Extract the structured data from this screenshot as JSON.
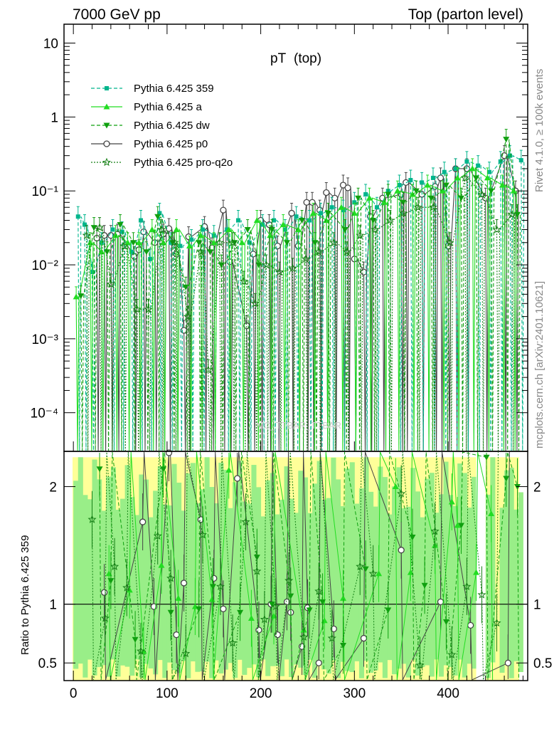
{
  "chart_data": {
    "type": "line",
    "header_left": "7000 GeV pp",
    "header_right": "Top (parton level)",
    "title": "pT",
    "title_sub": "(top)",
    "side_label_top": "Rivet 4.1.0, ≥ 100k events",
    "side_label_bottom": "mcplots.cern.ch [arXiv:2401.10621]",
    "watermark": "MC_TTBAR_TTBAR",
    "xlabel": "",
    "ylabel_main": "",
    "ylabel_ratio": "Ratio to Pythia 6.425 359",
    "xlim": [
      -10,
      485
    ],
    "ylim_main": [
      3e-05,
      18
    ],
    "ylim_ratio": [
      0.35,
      2.3
    ],
    "x_ticks": [
      0,
      100,
      200,
      300,
      400
    ],
    "x_tick_labels": [
      "0",
      "100",
      "200",
      "300",
      "400"
    ],
    "y_main_ticks": [
      0.0001,
      0.001,
      0.01,
      0.1,
      1,
      10
    ],
    "y_main_tick_labels": [
      "10⁻⁴",
      "10⁻³",
      "10⁻²",
      "10⁻¹",
      "1",
      "10"
    ],
    "y_ratio_ticks": [
      0.5,
      1,
      2
    ],
    "y_ratio_tick_labels": [
      "0.5",
      "1",
      "2"
    ],
    "legend": [
      {
        "name": "Pythia 6.425 359",
        "color": "#00b58c",
        "dash": "5,3",
        "marker": "square"
      },
      {
        "name": "Pythia 6.425 a",
        "color": "#22dd22",
        "dash": "",
        "marker": "triangle-up"
      },
      {
        "name": "Pythia 6.425 dw",
        "color": "#0fa00f",
        "dash": "5,3",
        "marker": "triangle-down"
      },
      {
        "name": "Pythia 6.425 p0",
        "color": "#444444",
        "dash": "",
        "marker": "circle-open"
      },
      {
        "name": "Pythia 6.425 pro-q2o",
        "color": "#157f15",
        "dash": "2,2",
        "marker": "star"
      }
    ],
    "series": [
      {
        "name": "Pythia 6.425 p0",
        "x": [
          25,
          33,
          40,
          47,
          65,
          70,
          75,
          87,
          96,
          102,
          110,
          118,
          123,
          140,
          148,
          160,
          167,
          185,
          192,
          200,
          209,
          218,
          233,
          240,
          249,
          255,
          263,
          270,
          279,
          288,
          293,
          300,
          310,
          317,
          330,
          350,
          355,
          372,
          386,
          392,
          400,
          408,
          420,
          440,
          460,
          472
        ],
        "values": [
          0.023,
          0.025,
          0.025,
          0.026,
          0.013,
          0.016,
          0.028,
          0.02,
          0.026,
          0.031,
          0.014,
          0.0013,
          0.024,
          0.033,
          0.017,
          0.055,
          0.011,
          0.0015,
          0.014,
          0.04,
          0.035,
          0.018,
          0.05,
          0.018,
          0.07,
          0.07,
          0.055,
          0.095,
          0.08,
          0.12,
          0.11,
          0.012,
          0.008,
          0.045,
          0.08,
          0.09,
          0.13,
          0.09,
          0.115,
          0.15,
          0.018,
          0.2,
          0.2,
          0.08,
          0.3,
          0.1
        ]
      },
      {
        "name": "Pythia 6.425 359",
        "x": [
          5,
          12,
          20,
          30,
          42,
          52,
          62,
          72,
          82,
          92,
          104,
          114,
          126,
          138,
          150,
          164,
          176,
          188,
          202,
          214,
          226,
          238,
          252,
          264,
          276,
          288,
          300,
          312,
          324,
          336,
          348,
          360,
          372,
          384,
          396,
          408,
          420,
          432,
          444,
          456,
          466,
          478
        ],
        "values": [
          0.045,
          0.035,
          0.008,
          0.02,
          0.03,
          0.028,
          0.015,
          0.04,
          0.012,
          0.05,
          0.02,
          0.018,
          0.022,
          0.03,
          0.025,
          0.03,
          0.04,
          0.02,
          0.035,
          0.04,
          0.03,
          0.045,
          0.04,
          0.05,
          0.06,
          0.055,
          0.07,
          0.09,
          0.06,
          0.1,
          0.12,
          0.14,
          0.13,
          0.15,
          0.18,
          0.2,
          0.25,
          0.22,
          0.18,
          0.25,
          0.3,
          0.26
        ]
      },
      {
        "name": "Pythia 6.425 a",
        "x": [
          3,
          18,
          30,
          45,
          58,
          70,
          84,
          96,
          110,
          124,
          136,
          150,
          166,
          180,
          196,
          210,
          224,
          240,
          256,
          270,
          286,
          300,
          316,
          332,
          346,
          362,
          378,
          394,
          410,
          426,
          442,
          458,
          470
        ],
        "values": [
          0.0037,
          0.02,
          0.015,
          0.025,
          0.02,
          0.02,
          0.03,
          0.02,
          0.03,
          0.018,
          0.025,
          0.02,
          0.03,
          0.02,
          0.04,
          0.025,
          0.035,
          0.03,
          0.05,
          0.04,
          0.06,
          0.05,
          0.08,
          0.07,
          0.1,
          0.09,
          0.12,
          0.1,
          0.15,
          0.2,
          0.15,
          0.12,
          0.1
        ]
      },
      {
        "name": "Pythia 6.425 dw",
        "x": [
          8,
          22,
          36,
          50,
          64,
          78,
          90,
          106,
          120,
          134,
          146,
          158,
          172,
          186,
          198,
          212,
          228,
          244,
          258,
          272,
          290,
          304,
          320,
          336,
          352,
          366,
          382,
          398,
          414,
          430,
          446,
          462,
          474
        ],
        "values": [
          0.0038,
          0.032,
          0.015,
          0.035,
          0.02,
          0.015,
          0.045,
          0.02,
          0.005,
          0.02,
          0.015,
          0.01,
          0.02,
          0.03,
          0.01,
          0.03,
          0.02,
          0.04,
          0.02,
          0.05,
          0.03,
          0.08,
          0.04,
          0.09,
          0.07,
          0.1,
          0.08,
          0.12,
          0.08,
          0.15,
          0.1,
          0.5,
          0.048
        ]
      },
      {
        "name": "Pythia 6.425 pro-q2o",
        "x": [
          14,
          28,
          40,
          54,
          68,
          80,
          94,
          108,
          122,
          136,
          144,
          156,
          170,
          182,
          194,
          206,
          220,
          234,
          248,
          262,
          278,
          292,
          306,
          322,
          338,
          352,
          368,
          384,
          402,
          418,
          436,
          452,
          468
        ],
        "values": [
          0.025,
          0.032,
          0.0055,
          0.018,
          0.0025,
          0.0025,
          0.03,
          0.02,
          0.002,
          0.015,
          0.00038,
          0.02,
          0.02,
          0.006,
          0.003,
          0.01,
          0.008,
          0.009,
          0.012,
          0.015,
          0.02,
          0.015,
          0.025,
          0.03,
          0.04,
          0.05,
          0.06,
          0.06,
          0.02,
          0.15,
          0.09,
          0.03,
          0.048
        ]
      }
    ],
    "ratio_series": [
      {
        "name": "Pythia 6.425 p0",
        "x": [
          33,
          74,
          86,
          102,
          110,
          118,
          136,
          150,
          160,
          175,
          198,
          211,
          218,
          228,
          232,
          244,
          250,
          262,
          278,
          310,
          350,
          392,
          424,
          464
        ],
        "values": [
          1.1,
          1.7,
          0.98,
          2.3,
          0.74,
          1.18,
          1.72,
          1.22,
          0.96,
          2.07,
          0.78,
          1.0,
          0.74,
          1.02,
          0.93,
          0.64,
          0.97,
          0.5,
          0.79,
          0.71,
          1.46,
          1.02,
          0.82,
          0.5
        ]
      },
      {
        "name": "Pythia 6.425 a",
        "x": [
          38,
          60,
          75,
          94,
          112,
          130,
          148,
          166,
          190,
          214,
          246,
          268,
          288,
          326,
          344,
          360,
          386,
          404,
          410,
          430,
          446
        ],
        "values": [
          1.26,
          1.12,
          0.6,
          1.33,
          1.05,
          0.98,
          1.04,
          2.14,
          0.88,
          0.9,
          0.78,
          0.86,
          1.05,
          1.26,
          2.0,
          1.27,
          1.5,
          1.87,
          1.67,
          1.27,
          1.77
        ]
      },
      {
        "name": "Pythia 6.425 dw",
        "x": [
          28,
          40,
          66,
          96,
          104,
          134,
          149,
          178,
          196,
          212,
          232,
          252,
          266,
          288,
          312,
          336,
          362,
          375,
          398,
          414,
          441,
          462,
          474
        ],
        "values": [
          2.15,
          1.2,
          0.7,
          2.15,
          0.93,
          0.96,
          1.15,
          0.93,
          1.4,
          1.0,
          1.07,
          0.95,
          1.02,
          0.65,
          1.3,
          0.95,
          1.57,
          1.16,
          0.85,
          1.67,
          2.25,
          2.07,
          2.0
        ]
      },
      {
        "name": "Pythia 6.425 pro-q2o",
        "x": [
          20,
          34,
          44,
          57,
          72,
          90,
          104,
          120,
          138,
          157,
          170,
          184,
          196,
          204,
          216,
          230,
          246,
          262,
          276,
          306,
          320,
          350,
          370,
          386,
          404,
          420,
          436,
          452
        ],
        "values": [
          1.72,
          0.88,
          1.32,
          1.14,
          0.6,
          1.58,
          1.22,
          0.58,
          1.59,
          1.15,
          0.67,
          1.7,
          1.28,
          0.87,
          0.98,
          1.2,
          0.72,
          1.11,
          0.71,
          1.32,
          1.26,
          1.94,
          0.48,
          1.62,
          0.57,
          1.15,
          1.08,
          0.84
        ]
      }
    ],
    "band_inner": {
      "color": "#99ee88",
      "lo": 0.35,
      "hi": 2.25
    },
    "band_outer": {
      "color": "#ffff99"
    },
    "band_gap_x": [
      [
        430,
        440
      ],
      [
        446,
        452
      ]
    ]
  }
}
